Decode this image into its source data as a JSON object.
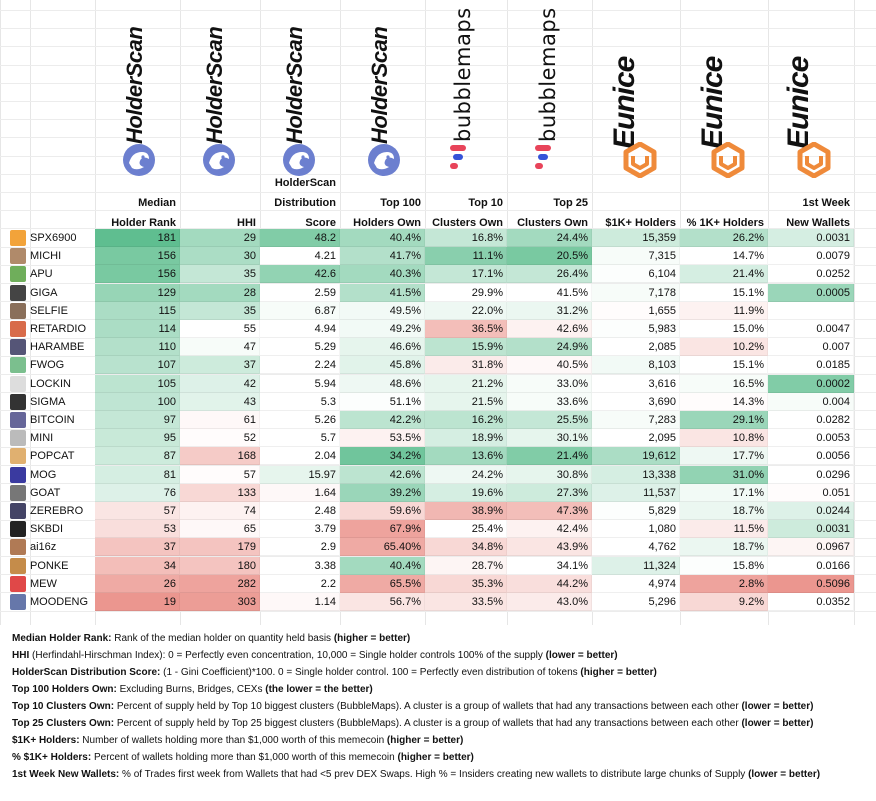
{
  "brands": [
    {
      "key": "holderscan",
      "label": "HolderScan"
    },
    {
      "key": "holderscan",
      "label": "HolderScan"
    },
    {
      "key": "holderscan",
      "label": "HolderScan"
    },
    {
      "key": "holderscan",
      "label": "HolderScan"
    },
    {
      "key": "bubblemaps",
      "label": "bubblemaps"
    },
    {
      "key": "bubblemaps",
      "label": "bubblemaps"
    },
    {
      "key": "eunice",
      "label": "Eunice"
    },
    {
      "key": "eunice",
      "label": "Eunice"
    },
    {
      "key": "eunice",
      "label": "Eunice"
    }
  ],
  "colors": {
    "good": "#57bb8a",
    "bad": "#e67c73",
    "white": "#ffffff",
    "holderscan": "#6c7fcf",
    "bubble_red": "#e8445a",
    "bubble_blue": "#3553d8",
    "eunice": "#ef8a3a"
  },
  "headers": [
    {
      "l1": "",
      "l2": "Median",
      "l3": "Holder Rank"
    },
    {
      "l1": "",
      "l2": "",
      "l3": "HHI"
    },
    {
      "l1": "HolderScan",
      "l2": "Distribution",
      "l3": "Score"
    },
    {
      "l1": "",
      "l2": "Top 100",
      "l3": "Holders Own"
    },
    {
      "l1": "",
      "l2": "Top 10",
      "l3": "Clusters Own"
    },
    {
      "l1": "",
      "l2": "Top 25",
      "l3": "Clusters Own"
    },
    {
      "l1": "",
      "l2": "",
      "l3": "$1K+ Holders"
    },
    {
      "l1": "",
      "l2": "",
      "l3": "% 1K+ Holders"
    },
    {
      "l1": "",
      "l2": "1st Week",
      "l3": "New Wallets"
    }
  ],
  "rows": [
    {
      "name": "SPX6900",
      "avatar": "#f2a33a",
      "values": [
        "181",
        "29",
        "48.2",
        "40.4%",
        "16.8%",
        "24.4%",
        "15,359",
        "26.2%",
        "0.0031"
      ],
      "scores": [
        0.95,
        0.55,
        0.75,
        0.55,
        0.35,
        0.55,
        0.3,
        0.45,
        0.25
      ]
    },
    {
      "name": "MICHI",
      "avatar": "#b08a6a",
      "values": [
        "156",
        "30",
        "4.21",
        "41.7%",
        "11.1%",
        "20.5%",
        "7,315",
        "14.7%",
        "0.0079"
      ],
      "scores": [
        0.8,
        0.5,
        0,
        0.45,
        0.7,
        0.8,
        0.05,
        0,
        0
      ]
    },
    {
      "name": "APU",
      "avatar": "#6fae5b",
      "values": [
        "156",
        "35",
        "42.6",
        "40.3%",
        "17.1%",
        "26.4%",
        "6,104",
        "21.4%",
        "0.0252"
      ],
      "scores": [
        0.8,
        0.35,
        0.65,
        0.55,
        0.35,
        0.35,
        0.02,
        0.25,
        0
      ]
    },
    {
      "name": "GIGA",
      "avatar": "#444444",
      "values": [
        "129",
        "28",
        "2.59",
        "41.5%",
        "29.9%",
        "41.5%",
        "7,178",
        "15.1%",
        "0.0005"
      ],
      "scores": [
        0.62,
        0.55,
        0,
        0.45,
        0,
        0,
        0.05,
        0,
        0.6
      ]
    },
    {
      "name": "SELFIE",
      "avatar": "#8a6f5a",
      "values": [
        "115",
        "35",
        "6.87",
        "49.5%",
        "22.0%",
        "31.2%",
        "1,655",
        "11.9%",
        ""
      ],
      "scores": [
        0.5,
        0.35,
        0.05,
        0.08,
        0.1,
        0.12,
        -0.02,
        -0.1,
        0
      ]
    },
    {
      "name": "RETARDIO",
      "avatar": "#d86b4a",
      "values": [
        "114",
        "55",
        "4.94",
        "49.2%",
        "36.5%",
        "42.6%",
        "5,983",
        "15.0%",
        "0.0047"
      ],
      "scores": [
        0.5,
        0,
        0,
        0.08,
        -0.5,
        -0.1,
        0.02,
        0,
        0
      ]
    },
    {
      "name": "HARAMBE",
      "avatar": "#555577",
      "values": [
        "110",
        "47",
        "5.29",
        "46.6%",
        "15.9%",
        "24.9%",
        "2,085",
        "10.2%",
        "0.007"
      ],
      "scores": [
        0.45,
        0.05,
        0,
        0.15,
        0.4,
        0.45,
        0,
        -0.2,
        0
      ]
    },
    {
      "name": "FWOG",
      "avatar": "#7bbf8e",
      "values": [
        "107",
        "37",
        "2.24",
        "45.8%",
        "31.8%",
        "40.5%",
        "8,103",
        "15.1%",
        "0.0185"
      ],
      "scores": [
        0.42,
        0.3,
        0,
        0.18,
        -0.15,
        -0.05,
        0.08,
        0,
        0
      ]
    },
    {
      "name": "LOCKIN",
      "avatar": "#dddddd",
      "values": [
        "105",
        "42",
        "5.94",
        "48.6%",
        "21.2%",
        "33.0%",
        "3,616",
        "16.5%",
        "0.0002"
      ],
      "scores": [
        0.4,
        0.2,
        0,
        0.1,
        0.15,
        0.05,
        0,
        0.05,
        0.75
      ]
    },
    {
      "name": "SIGMA",
      "avatar": "#333333",
      "values": [
        "100",
        "43",
        "5.3",
        "51.1%",
        "21.5%",
        "33.6%",
        "3,690",
        "14.3%",
        "0.004"
      ],
      "scores": [
        0.38,
        0.18,
        0,
        0.02,
        0.15,
        0.05,
        0,
        -0.02,
        0.05
      ]
    },
    {
      "name": "BITCOIN",
      "avatar": "#666699",
      "values": [
        "97",
        "61",
        "5.26",
        "42.2%",
        "16.2%",
        "25.5%",
        "7,283",
        "29.1%",
        "0.0282"
      ],
      "scores": [
        0.35,
        -0.05,
        0,
        0.4,
        0.4,
        0.35,
        0.05,
        0.6,
        0
      ]
    },
    {
      "name": "MINI",
      "avatar": "#bbbbbb",
      "values": [
        "95",
        "52",
        "5.7",
        "53.5%",
        "18.9%",
        "30.1%",
        "2,095",
        "10.8%",
        "0.0053"
      ],
      "scores": [
        0.33,
        -0.02,
        0,
        -0.1,
        0.25,
        0.15,
        0,
        -0.2,
        0
      ]
    },
    {
      "name": "POPCAT",
      "avatar": "#e0b070",
      "values": [
        "87",
        "168",
        "2.04",
        "34.2%",
        "13.6%",
        "21.4%",
        "19,612",
        "17.7%",
        "0.0056"
      ],
      "scores": [
        0.3,
        -0.4,
        0,
        0.85,
        0.55,
        0.75,
        0.5,
        0.1,
        0
      ]
    },
    {
      "name": "MOG",
      "avatar": "#3a3aa0",
      "values": [
        "81",
        "57",
        "15.97",
        "42.6%",
        "24.2%",
        "30.8%",
        "13,338",
        "31.0%",
        "0.0296"
      ],
      "scores": [
        0.25,
        -0.02,
        0.15,
        0.4,
        0.1,
        0.15,
        0.25,
        0.65,
        0
      ]
    },
    {
      "name": "GOAT",
      "avatar": "#777777",
      "values": [
        "76",
        "133",
        "1.64",
        "39.2%",
        "19.6%",
        "27.3%",
        "11,537",
        "17.1%",
        "0.051"
      ],
      "scores": [
        0.2,
        -0.3,
        -0.05,
        0.6,
        0.25,
        0.3,
        0.2,
        0.08,
        -0.02
      ]
    },
    {
      "name": "ZEREBRO",
      "avatar": "#444466",
      "values": [
        "57",
        "74",
        "2.48",
        "59.6%",
        "38.9%",
        "47.3%",
        "5,829",
        "18.7%",
        "0.0244"
      ],
      "scores": [
        -0.2,
        -0.1,
        0,
        -0.3,
        -0.55,
        -0.5,
        0.02,
        0.12,
        0.2
      ]
    },
    {
      "name": "SKBDI",
      "avatar": "#222222",
      "values": [
        "53",
        "65",
        "3.79",
        "67.9%",
        "25.4%",
        "42.4%",
        "1,080",
        "11.5%",
        "0.0031"
      ],
      "scores": [
        -0.25,
        -0.05,
        0,
        -0.7,
        0,
        -0.1,
        0,
        -0.15,
        0.3
      ]
    },
    {
      "name": "ai16z",
      "avatar": "#b07a55",
      "values": [
        "37",
        "179",
        "2.9",
        "65.40%",
        "34.8%",
        "43.9%",
        "4,762",
        "18.7%",
        "0.0967"
      ],
      "scores": [
        -0.45,
        -0.45,
        0,
        -0.65,
        -0.3,
        -0.2,
        0,
        0.12,
        -0.08
      ]
    },
    {
      "name": "PONKE",
      "avatar": "#c58c4a",
      "values": [
        "34",
        "180",
        "3.38",
        "40.4%",
        "28.7%",
        "34.1%",
        "11,324",
        "15.8%",
        "0.0166"
      ],
      "scores": [
        -0.5,
        -0.45,
        0,
        0.55,
        -0.08,
        0,
        0.2,
        0.02,
        0
      ]
    },
    {
      "name": "MEW",
      "avatar": "#e04848",
      "values": [
        "26",
        "282",
        "2.2",
        "65.5%",
        "35.3%",
        "44.2%",
        "4,974",
        "2.8%",
        "0.5096"
      ],
      "scores": [
        -0.65,
        -0.7,
        0,
        -0.65,
        -0.3,
        -0.25,
        0,
        -0.7,
        -0.8
      ]
    },
    {
      "name": "MOODENG",
      "avatar": "#6677aa",
      "values": [
        "19",
        "303",
        "1.14",
        "56.7%",
        "33.5%",
        "43.0%",
        "5,296",
        "9.2%",
        "0.0352"
      ],
      "scores": [
        -0.8,
        -0.75,
        -0.05,
        -0.2,
        -0.2,
        -0.15,
        0,
        -0.3,
        0
      ]
    }
  ],
  "notes": [
    {
      "b": "Median Holder Rank:",
      "t": " Rank of the median holder on quantity held basis ",
      "b2": "(higher = better)"
    },
    {
      "b": "HHI",
      "t": " (Herfindahl-Hirschman Index): 0 = Perfectly even concentration, 10,000 = Single holder controls 100% of the supply ",
      "b2": "(lower = better)"
    },
    {
      "b": "HolderScan Distribution Score:",
      "t": " (1 - Gini Coefficient)*100. 0 = Single holder control. 100 = Perfectly even distribution of tokens ",
      "b2": "(higher = better)"
    },
    {
      "b": "Top 100 Holders Own:",
      "t": " Excluding Burns, Bridges, CEXs ",
      "b2": "(the lower = the better)"
    },
    {
      "b": "Top 10 Clusters Own:",
      "t": " Percent of supply held by Top 10 biggest clusters (BubbleMaps). A cluster is a group of wallets that had any transactions between each other ",
      "b2": "(lower = better)"
    },
    {
      "b": "Top 25 Clusters Own:",
      "t": " Percent of supply held by Top 25 biggest clusters (BubbleMaps). A cluster is a group of wallets that had any transactions between each other ",
      "b2": "(lower = better)"
    },
    {
      "b": "$1K+ Holders:",
      "t": " Number of wallets holding more than $1,000 worth of this memecoin ",
      "b2": "(higher = better)"
    },
    {
      "b": "% $1K+ Holders:",
      "t": " Percent of wallets holding more than $1,000 worth of this memecoin ",
      "b2": "(higher = better)"
    },
    {
      "b": "1st Week New Wallets:",
      "t": " % of Trades first week from Wallets that had <5 prev DEX Swaps. High % = Insiders creating new wallets to distribute large chunks of Supply ",
      "b2": "(lower = better)"
    }
  ]
}
